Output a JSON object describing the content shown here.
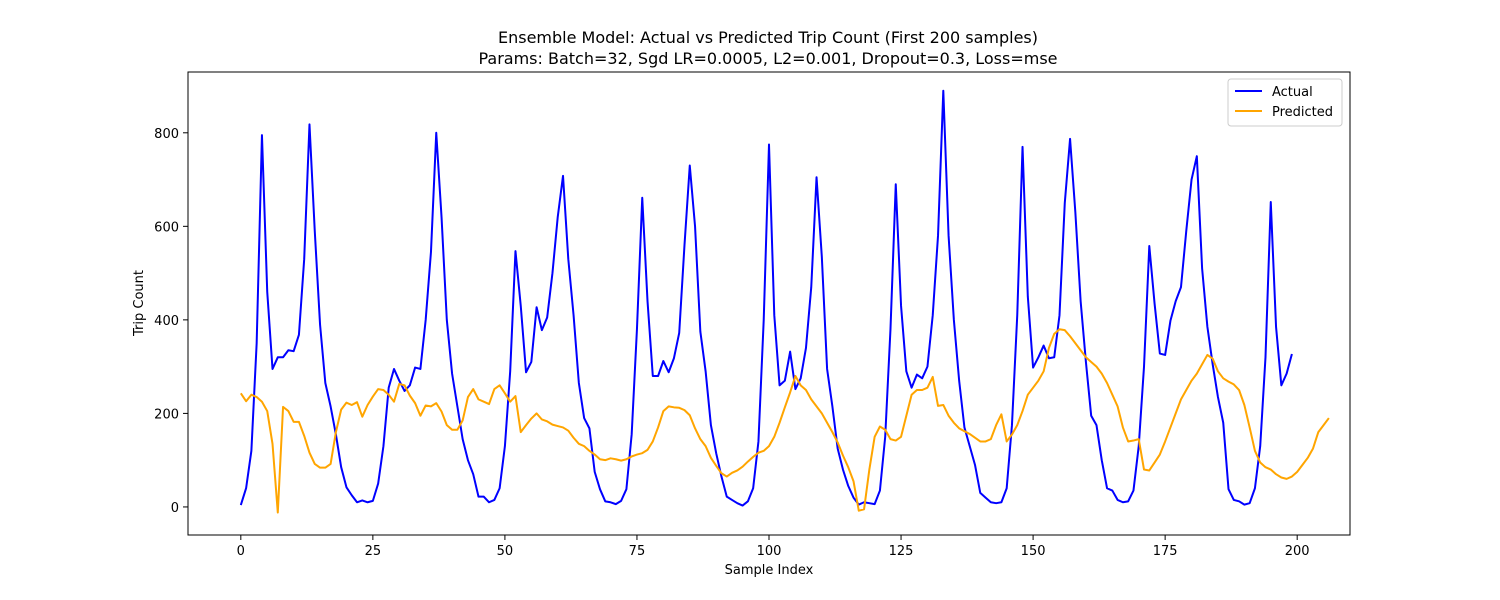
{
  "chart_data": {
    "type": "line",
    "title": "Ensemble Model: Actual vs Predicted Trip Count (First 200 samples)",
    "subtitle": "Params: Batch=32, Sgd LR=0.0005, L2=0.001, Dropout=0.3, Loss=mse",
    "xlabel": "Sample Index",
    "ylabel": "Trip Count",
    "xlim": [
      -10,
      210
    ],
    "ylim": [
      -60,
      930
    ],
    "xticks": [
      0,
      25,
      50,
      75,
      100,
      125,
      150,
      175,
      200
    ],
    "yticks": [
      0,
      200,
      400,
      600,
      800
    ],
    "grid": false,
    "legend_position": "upper-right",
    "series": [
      {
        "name": "Actual",
        "color": "#0000ff",
        "values": [
          4,
          40,
          120,
          350,
          795,
          460,
          295,
          320,
          320,
          335,
          333,
          368,
          530,
          818,
          590,
          390,
          265,
          215,
          155,
          85,
          42,
          25,
          10,
          14,
          10,
          13,
          50,
          130,
          255,
          295,
          270,
          248,
          260,
          298,
          295,
          400,
          545,
          800,
          620,
          400,
          285,
          215,
          145,
          100,
          70,
          22,
          22,
          10,
          15,
          40,
          130,
          290,
          547,
          430,
          288,
          310,
          427,
          378,
          405,
          500,
          620,
          708,
          530,
          410,
          265,
          190,
          168,
          75,
          38,
          12,
          10,
          6,
          13,
          38,
          155,
          380,
          661,
          440,
          280,
          280,
          312,
          288,
          318,
          372,
          560,
          730,
          600,
          375,
          290,
          175,
          115,
          65,
          22,
          15,
          8,
          3,
          12,
          40,
          140,
          400,
          775,
          410,
          260,
          270,
          332,
          252,
          275,
          340,
          470,
          705,
          535,
          295,
          215,
          125,
          80,
          45,
          20,
          5,
          10,
          8,
          6,
          35,
          150,
          380,
          690,
          430,
          290,
          255,
          283,
          275,
          300,
          410,
          580,
          890,
          580,
          400,
          270,
          170,
          130,
          90,
          30,
          20,
          10,
          8,
          10,
          40,
          175,
          410,
          770,
          450,
          298,
          320,
          345,
          318,
          320,
          410,
          650,
          787,
          630,
          440,
          310,
          195,
          175,
          100,
          40,
          35,
          15,
          10,
          12,
          35,
          130,
          300,
          558,
          435,
          328,
          325,
          398,
          440,
          470,
          590,
          700,
          750,
          510,
          385,
          305,
          235,
          180,
          38,
          15,
          12,
          5,
          8,
          40,
          130,
          320,
          652,
          385,
          260,
          285,
          327
        ]
      },
      {
        "name": "Predicted",
        "color": "#ffa500",
        "values": [
          243,
          226,
          240,
          235,
          225,
          205,
          135,
          -12,
          214,
          205,
          182,
          182,
          152,
          116,
          92,
          84,
          84,
          92,
          160,
          208,
          223,
          218,
          224,
          193,
          218,
          236,
          252,
          250,
          240,
          225,
          263,
          260,
          238,
          222,
          195,
          217,
          215,
          222,
          204,
          175,
          165,
          165,
          185,
          235,
          252,
          230,
          225,
          220,
          252,
          260,
          243,
          225,
          237,
          160,
          175,
          189,
          200,
          187,
          183,
          176,
          173,
          170,
          163,
          148,
          135,
          130,
          120,
          112,
          102,
          100,
          104,
          102,
          99,
          102,
          108,
          112,
          115,
          122,
          140,
          170,
          205,
          215,
          213,
          212,
          207,
          196,
          168,
          145,
          130,
          105,
          88,
          72,
          65,
          73,
          78,
          86,
          97,
          107,
          116,
          120,
          130,
          150,
          180,
          213,
          245,
          280,
          260,
          250,
          230,
          215,
          200,
          180,
          160,
          138,
          110,
          85,
          55,
          -8,
          -5,
          80,
          150,
          172,
          165,
          145,
          142,
          150,
          195,
          240,
          250,
          250,
          255,
          278,
          216,
          218,
          195,
          180,
          168,
          162,
          156,
          148,
          140,
          140,
          145,
          175,
          198,
          140,
          155,
          175,
          205,
          240,
          255,
          270,
          290,
          340,
          370,
          380,
          378,
          365,
          350,
          335,
          320,
          310,
          300,
          285,
          265,
          240,
          215,
          170,
          140,
          142,
          145,
          80,
          78,
          95,
          112,
          140,
          170,
          200,
          230,
          250,
          270,
          285,
          305,
          325,
          317,
          290,
          275,
          268,
          262,
          250,
          218,
          170,
          120,
          95,
          85,
          80,
          70,
          63,
          60,
          65,
          75,
          90,
          105,
          125,
          160,
          175,
          190
        ]
      }
    ]
  }
}
